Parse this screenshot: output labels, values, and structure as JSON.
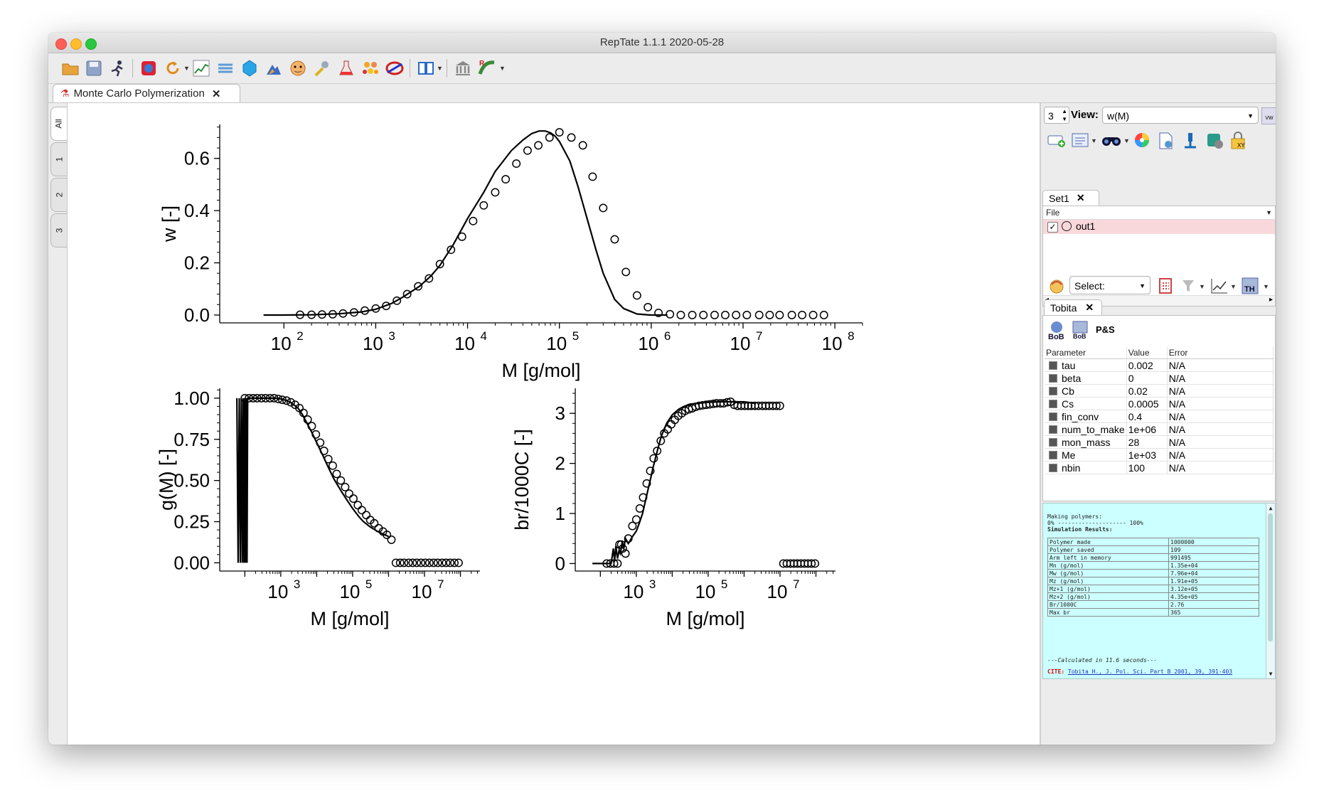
{
  "window": {
    "title": "RepTate 1.1.1 2020-05-28"
  },
  "toolbar": {
    "icons": [
      "open-folder-icon",
      "save-icon",
      "runner-icon",
      "database-icon",
      "reload-icon",
      "chart-icon",
      "layers-icon",
      "gem-icon",
      "tools-icon",
      "face-icon",
      "pin-icon",
      "flask-icon",
      "molecule-icon",
      "ring-icon",
      "book-icon",
      "museum-icon",
      "reptate-logo-icon"
    ]
  },
  "tab": {
    "label": "Monte Carlo Polymerization"
  },
  "vtabs": [
    "All",
    "1",
    "2",
    "3"
  ],
  "chart_data": [
    {
      "type": "line",
      "title": "",
      "xlabel": "M [g/mol]",
      "ylabel": "w [-]",
      "xscale": "log",
      "xlim": [
        20,
        200000000
      ],
      "ylim": [
        -0.03,
        0.73
      ],
      "xticks": [
        {
          "exp": "2",
          "value": 100
        },
        {
          "exp": "3",
          "value": 1000
        },
        {
          "exp": "4",
          "value": 10000
        },
        {
          "exp": "5",
          "value": 100000
        },
        {
          "exp": "6",
          "value": 1000000
        },
        {
          "exp": "7",
          "value": 10000000
        },
        {
          "exp": "8",
          "value": 100000000
        }
      ],
      "yticks": [
        "0.0",
        "0.2",
        "0.4",
        "0.6"
      ],
      "ytick_values": [
        0,
        0.2,
        0.4,
        0.6
      ],
      "series": [
        {
          "style": "line",
          "x": [
            60,
            100,
            200,
            400,
            700,
            1000,
            1500,
            2000,
            3000,
            4000,
            5000,
            7000,
            10000,
            15000,
            20000,
            30000,
            40000,
            50000,
            60000,
            70000,
            80000,
            90000,
            100000,
            130000,
            160000,
            200000,
            250000,
            300000,
            400000,
            500000,
            700000,
            900000,
            1000000,
            1200000,
            1500000
          ],
          "y": [
            0,
            0,
            0.001,
            0.005,
            0.012,
            0.022,
            0.045,
            0.07,
            0.11,
            0.15,
            0.19,
            0.27,
            0.37,
            0.47,
            0.55,
            0.63,
            0.67,
            0.695,
            0.705,
            0.705,
            0.698,
            0.685,
            0.665,
            0.59,
            0.49,
            0.37,
            0.25,
            0.16,
            0.06,
            0.025,
            0.004,
            0.001,
            0,
            0,
            0
          ]
        },
        {
          "style": "markers",
          "x": [
            150,
            200,
            260,
            340,
            440,
            580,
            760,
            1000,
            1300,
            1700,
            2200,
            2900,
            3800,
            5000,
            6600,
            8700,
            11500,
            15000,
            20000,
            26000,
            34000,
            45000,
            59000,
            78000,
            100000,
            135000,
            180000,
            230000,
            300000,
            400000,
            530000,
            700000,
            920000,
            1200000,
            1600000,
            2100000,
            2800000,
            3700000,
            4900000,
            6400000,
            8400000,
            11000000,
            15000000,
            19500000,
            25000000,
            34000000,
            44000000,
            58000000,
            76000000
          ],
          "y": [
            0.001,
            0.001,
            0.002,
            0.003,
            0.006,
            0.01,
            0.017,
            0.025,
            0.035,
            0.055,
            0.08,
            0.11,
            0.14,
            0.195,
            0.25,
            0.3,
            0.36,
            0.42,
            0.47,
            0.52,
            0.58,
            0.63,
            0.65,
            0.68,
            0.7,
            0.68,
            0.65,
            0.53,
            0.41,
            0.29,
            0.165,
            0.075,
            0.03,
            0.008,
            0.003,
            0,
            0,
            0,
            0,
            0,
            0,
            0,
            0,
            0,
            0,
            0,
            0,
            0,
            0
          ]
        }
      ]
    },
    {
      "type": "line",
      "title": "",
      "xlabel": "M [g/mol]",
      "ylabel": "g(M) [-]",
      "xscale": "log",
      "xlim": [
        20,
        350000000
      ],
      "ylim": [
        -0.05,
        1.06
      ],
      "xticks": [
        {
          "exp": "3",
          "value": 1000
        },
        {
          "exp": "5",
          "value": 100000
        },
        {
          "exp": "7",
          "value": 10000000
        }
      ],
      "yticks": [
        "0.00",
        "0.25",
        "0.50",
        "0.75",
        "1.00"
      ],
      "ytick_values": [
        0,
        0.25,
        0.5,
        0.75,
        1
      ],
      "series": [
        {
          "style": "line",
          "x": [
            60,
            65,
            70,
            75,
            80,
            85,
            90,
            95,
            100,
            105,
            110,
            115,
            120,
            130,
            150,
            200,
            300,
            500,
            700,
            1000,
            1500,
            2000,
            3000,
            4000,
            5000,
            7000,
            10000,
            15000,
            20000,
            30000,
            50000,
            70000,
            100000,
            150000,
            200000,
            300000,
            500000,
            700000,
            1000000
          ],
          "y": [
            1,
            0,
            1,
            0,
            1,
            0,
            1,
            0,
            1,
            0,
            1,
            0,
            1,
            1,
            1,
            1,
            1,
            1,
            1,
            0.995,
            0.985,
            0.97,
            0.94,
            0.9,
            0.86,
            0.8,
            0.73,
            0.65,
            0.59,
            0.51,
            0.43,
            0.38,
            0.33,
            0.28,
            0.25,
            0.22,
            0.19,
            0.175,
            0.16
          ]
        },
        {
          "style": "markers",
          "x": [
            100,
            130,
            170,
            220,
            290,
            380,
            500,
            650,
            850,
            1100,
            1450,
            1900,
            2500,
            3300,
            4300,
            5600,
            7300,
            9500,
            12500,
            16000,
            21000,
            28000,
            36000,
            47000,
            62000,
            80000,
            105000,
            140000,
            180000,
            240000,
            310000,
            400000,
            530000,
            700000,
            900000,
            1200000,
            1600000,
            2100000,
            2700000,
            3600000,
            4700000,
            6100000,
            8000000,
            10500000,
            13700000,
            18000000,
            23500000,
            31000000,
            40000000,
            52000000,
            68000000,
            89000000
          ],
          "y": [
            1,
            1,
            1,
            1,
            1,
            1,
            1,
            1,
            0.995,
            0.99,
            0.985,
            0.975,
            0.96,
            0.94,
            0.91,
            0.87,
            0.83,
            0.78,
            0.73,
            0.68,
            0.63,
            0.59,
            0.54,
            0.5,
            0.46,
            0.42,
            0.39,
            0.35,
            0.32,
            0.29,
            0.26,
            0.24,
            0.21,
            0.19,
            0.17,
            0.14,
            0,
            0,
            0,
            0,
            0,
            0,
            0,
            0,
            0,
            0,
            0,
            0,
            0,
            0,
            0,
            0
          ]
        }
      ]
    },
    {
      "type": "line",
      "title": "",
      "xlabel": "M [g/mol]",
      "ylabel": "br/1000C [-]",
      "xscale": "log",
      "xlim": [
        20,
        350000000
      ],
      "ylim": [
        -0.15,
        3.5
      ],
      "xticks": [
        {
          "exp": "3",
          "value": 1000
        },
        {
          "exp": "5",
          "value": 100000
        },
        {
          "exp": "7",
          "value": 10000000
        }
      ],
      "yticks": [
        "0",
        "1",
        "2",
        "3"
      ],
      "ytick_values": [
        0,
        1,
        2,
        3
      ],
      "series": [
        {
          "style": "line",
          "x": [
            60,
            100,
            150,
            200,
            230,
            250,
            270,
            300,
            330,
            360,
            400,
            450,
            500,
            600,
            800,
            1000,
            1200,
            1500,
            2000,
            2500,
            3000,
            4000,
            5000,
            7000,
            10000,
            15000,
            20000,
            30000,
            50000,
            100000,
            200000,
            500000,
            1000000,
            2000000
          ],
          "y": [
            0,
            0,
            0,
            0,
            0.3,
            0.05,
            0.35,
            0.1,
            0.25,
            0.2,
            0.4,
            0.3,
            0.5,
            0.4,
            0.55,
            0.65,
            0.8,
            1.0,
            1.4,
            1.7,
            1.95,
            2.3,
            2.55,
            2.8,
            2.97,
            3.08,
            3.13,
            3.18,
            3.2,
            3.22,
            3.23,
            3.23,
            3.23,
            3.2
          ]
        },
        {
          "style": "markers",
          "x": [
            150,
            190,
            240,
            300,
            340,
            380,
            420,
            500,
            600,
            780,
            1000,
            1250,
            1550,
            1950,
            2450,
            3050,
            3800,
            4800,
            6000,
            7500,
            9400,
            11800,
            14700,
            18400,
            23000,
            29000,
            36000,
            45000,
            56000,
            70000,
            88000,
            110000,
            140000,
            170000,
            220000,
            270000,
            340000,
            420000,
            530000,
            660000,
            830000,
            1040000,
            1300000,
            1600000,
            2000000,
            2500000,
            3200000,
            4000000,
            5000000,
            6300000,
            7900000,
            9900000,
            12400000,
            15500000,
            19500000,
            24400000,
            30500000,
            38000000,
            48000000,
            60000000,
            75000000,
            94000000
          ],
          "y": [
            0,
            0,
            0,
            0,
            0.38,
            0.38,
            0.3,
            0.2,
            0.5,
            0.75,
            0.88,
            1.1,
            1.32,
            1.6,
            1.85,
            2.1,
            2.25,
            2.45,
            2.6,
            2.68,
            2.78,
            2.87,
            2.95,
            3.0,
            3.05,
            3.08,
            3.1,
            3.13,
            3.15,
            3.16,
            3.17,
            3.18,
            3.19,
            3.2,
            3.2,
            3.2,
            3.22,
            3.23,
            3.17,
            3.15,
            3.15,
            3.15,
            3.15,
            3.15,
            3.15,
            3.15,
            3.15,
            3.15,
            3.15,
            3.15,
            3.15,
            3.15,
            0,
            0,
            0,
            0,
            0,
            0,
            0,
            0,
            0,
            0
          ]
        }
      ]
    }
  ],
  "right_panel": {
    "view_spin": "3",
    "view_label": "View:",
    "view_value": "w(M)",
    "sets_tab": "Set1",
    "file_header": "File",
    "files": [
      {
        "name": "out1",
        "checked": "✓"
      }
    ],
    "select_label": "Select:",
    "theory_tab": "Tobita",
    "bob_label1": "BoB",
    "bob_label2": "BoB",
    "ps_label": "P&S",
    "th_label": "TH",
    "table_headers": [
      "Parameter",
      "Value",
      "Error"
    ],
    "parameters": [
      {
        "name": "tau",
        "value": "0.002",
        "error": "N/A"
      },
      {
        "name": "beta",
        "value": "0",
        "error": "N/A"
      },
      {
        "name": "Cb",
        "value": "0.02",
        "error": "N/A"
      },
      {
        "name": "Cs",
        "value": "0.0005",
        "error": "N/A"
      },
      {
        "name": "fin_conv",
        "value": "0.4",
        "error": "N/A"
      },
      {
        "name": "num_to_make",
        "value": "1e+06",
        "error": "N/A"
      },
      {
        "name": "mon_mass",
        "value": "28",
        "error": "N/A"
      },
      {
        "name": "Me",
        "value": "1e+03",
        "error": "N/A"
      },
      {
        "name": "nbin",
        "value": "100",
        "error": "N/A"
      }
    ],
    "log": {
      "line1": "Making polymers:",
      "line2": "0% -------------------- 100%",
      "line3": "Simulation Results:",
      "results": [
        {
          "k": "Polymer made",
          "v": "1000000"
        },
        {
          "k": "Polymer saved",
          "v": "109"
        },
        {
          "k": "Arm left in memory",
          "v": "991495"
        },
        {
          "k": "Mn (g/mol)",
          "v": "1.35e+04"
        },
        {
          "k": "Mw (g/mol)",
          "v": "7.96e+04"
        },
        {
          "k": "Mz (g/mol)",
          "v": "1.91e+05"
        },
        {
          "k": "Mz+1 (g/mol)",
          "v": "3.12e+05"
        },
        {
          "k": "Mz+2 (g/mol)",
          "v": "4.35e+05"
        },
        {
          "k": "Br/1000C",
          "v": "2.76"
        },
        {
          "k": "Max br",
          "v": "365"
        }
      ],
      "calc": "---Calculated in 11.6 seconds---",
      "cite_label": "CITE:",
      "cite_text": "Tobita H., J. Pol. Sci. Part B 2001, 39, 391-403"
    }
  },
  "colors": {
    "pink_row": "#f9d8dc",
    "log_bg": "#ccffff",
    "cite_red": "#dd0000",
    "link_blue": "#2233bb"
  }
}
